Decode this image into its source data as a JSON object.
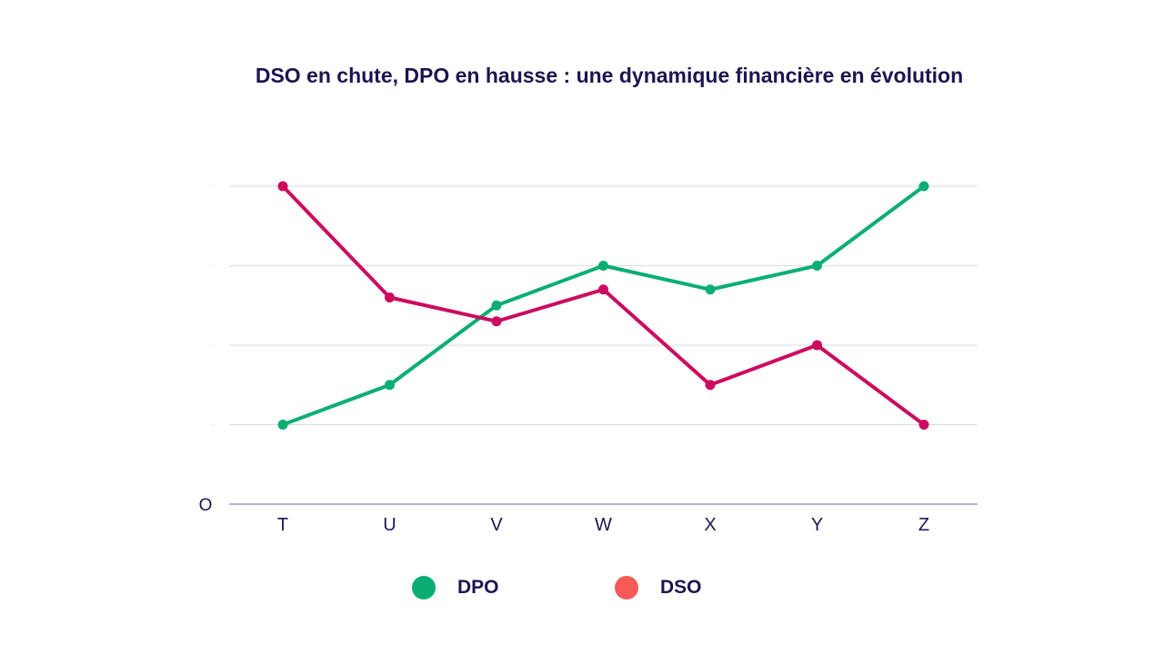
{
  "chart_data": {
    "type": "line",
    "title": "DSO en chute, DPO en hausse : une dynamique financière en évolution",
    "categories": [
      "T",
      "U",
      "V",
      "W",
      "X",
      "Y",
      "Z"
    ],
    "y_origin_label": "O",
    "y_ticks": [
      0,
      1,
      2,
      3,
      4
    ],
    "ylim": [
      0,
      4
    ],
    "grid": true,
    "legend_position": "bottom",
    "series": [
      {
        "name": "DPO",
        "color": "#0aae72",
        "legend_color": "#0aae72",
        "values": [
          1.0,
          1.5,
          2.5,
          3.0,
          2.7,
          3.0,
          4.0
        ]
      },
      {
        "name": "DSO",
        "color": "#cc0a5e",
        "legend_color": "#f55a57",
        "values": [
          4.0,
          2.6,
          2.3,
          2.7,
          1.5,
          2.0,
          1.0
        ]
      }
    ]
  }
}
